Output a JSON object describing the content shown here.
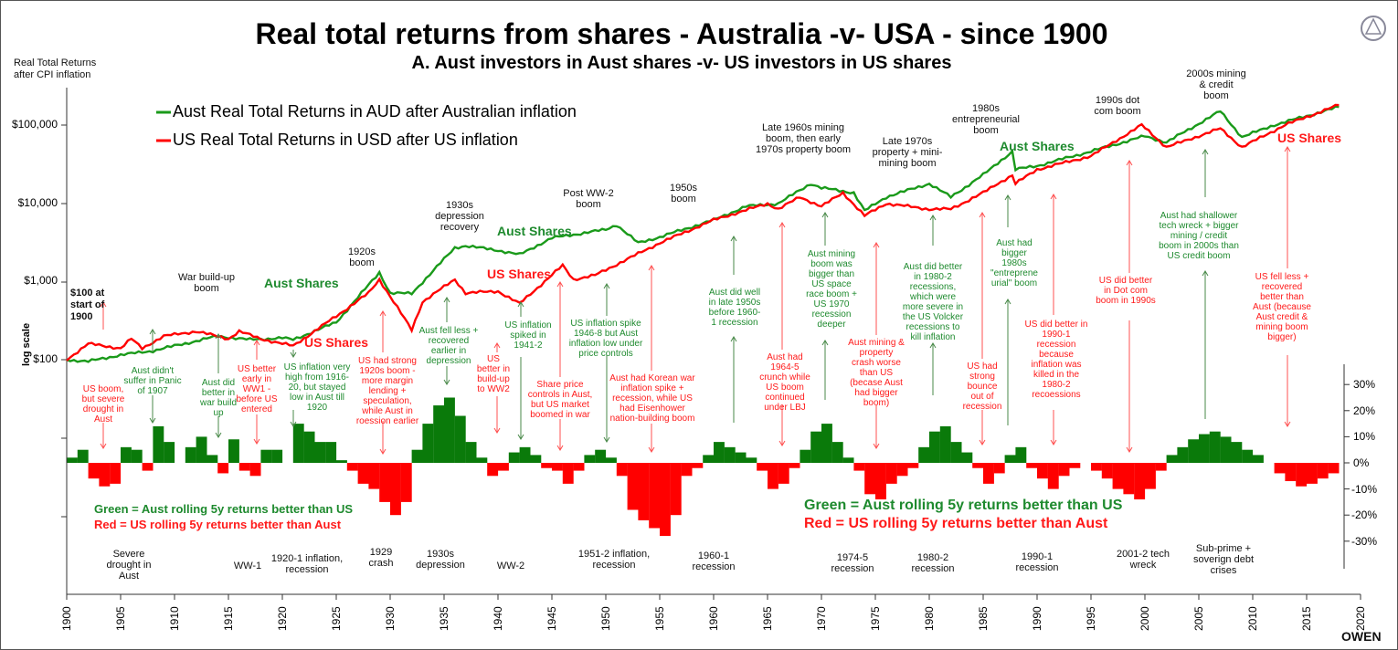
{
  "chart_data": {
    "type": "line",
    "title": "Real total returns from shares - Australia -v- USA - since 1900",
    "subtitle": "A. Aust investors in Aust shares -v- US investors in US shares",
    "ylabel": "Real Total Returns\nafter CPI inflation",
    "yscale": "log",
    "yscale_label": "log scale",
    "y_ticks": [
      "$100",
      "$1,000",
      "$10,000",
      "$100,000"
    ],
    "y_tick_values": [
      100,
      1000,
      10000,
      100000
    ],
    "x_ticks": [
      1900,
      1905,
      1910,
      1915,
      1920,
      1925,
      1930,
      1935,
      1940,
      1945,
      1950,
      1955,
      1960,
      1965,
      1970,
      1975,
      1980,
      1985,
      1990,
      1995,
      2000,
      2005,
      2010,
      2015,
      2020
    ],
    "xlim": [
      1900,
      2020
    ],
    "start_note": "$100 at\nstart of\n1900",
    "legend": [
      "Aust Real Total Returns in AUD after Australian inflation",
      "US Real Total Returns in USD after US inflation"
    ],
    "colors": {
      "aust": "#1a9a1a",
      "us": "#ff0000",
      "area_green": "#0a7a0a",
      "area_red": "#ff0000"
    },
    "series": [
      {
        "name": "Aust Real Total Returns in AUD after Australian inflation",
        "x": [
          1900,
          1902,
          1905,
          1908,
          1910,
          1914,
          1917,
          1920,
          1921,
          1925,
          1929,
          1930,
          1932,
          1936,
          1937,
          1940,
          1942,
          1945,
          1950,
          1951,
          1953,
          1955,
          1960,
          1963,
          1966,
          1969,
          1970,
          1973,
          1974,
          1976,
          1980,
          1982,
          1985,
          1987.7,
          1988,
          1990,
          1995,
          2000,
          2002,
          2007,
          2009,
          2012,
          2015,
          2018
        ],
        "values": [
          100,
          95,
          115,
          130,
          150,
          200,
          180,
          190,
          180,
          300,
          1300,
          710,
          700,
          2700,
          2850,
          2500,
          2200,
          3600,
          4600,
          5300,
          3100,
          3700,
          6100,
          9100,
          9900,
          17800,
          15700,
          13600,
          8000,
          12000,
          17800,
          12000,
          23000,
          46000,
          27000,
          30000,
          46000,
          72000,
          60000,
          150000,
          70000,
          100000,
          130000,
          170000
        ]
      },
      {
        "name": "US Real Total Returns in USD after US inflation",
        "x": [
          1900,
          1902,
          1905,
          1906,
          1907,
          1909,
          1912,
          1915,
          1916,
          1918,
          1920,
          1921,
          1925,
          1928,
          1929,
          1932,
          1933,
          1936,
          1937,
          1940,
          1942,
          1946,
          1947,
          1949,
          1955,
          1960,
          1965,
          1966,
          1968,
          1970,
          1972,
          1974,
          1976,
          1980,
          1982,
          1985,
          1987.7,
          1988,
          1990,
          1995,
          1999.7,
          2002,
          2007,
          2009,
          2013,
          2018
        ],
        "values": [
          100,
          160,
          140,
          185,
          140,
          200,
          230,
          185,
          230,
          185,
          160,
          150,
          360,
          710,
          1060,
          240,
          550,
          1060,
          710,
          750,
          520,
          1600,
          1060,
          1200,
          3100,
          6100,
          9900,
          8400,
          12000,
          9100,
          13600,
          6900,
          9900,
          8400,
          8400,
          13600,
          23000,
          17800,
          27000,
          40000,
          100000,
          52000,
          90000,
          52000,
          100000,
          180000
        ]
      }
    ],
    "difference_panel": {
      "description_labels": [
        "Green = Aust rolling 5y returns better than US",
        "Red = US rolling 5y returns better than Aust"
      ],
      "y_ticks": [
        "30%",
        "20%",
        "10%",
        "0%",
        "-10%",
        "-20%",
        "-30%"
      ],
      "ylim": [
        -30,
        30
      ],
      "x": [
        1900,
        1901,
        1902,
        1903,
        1904,
        1905,
        1906,
        1907,
        1908,
        1909,
        1910,
        1911,
        1912,
        1913,
        1914,
        1915,
        1916,
        1917,
        1918,
        1919,
        1920,
        1921,
        1922,
        1923,
        1924,
        1925,
        1926,
        1927,
        1928,
        1929,
        1930,
        1931,
        1932,
        1933,
        1934,
        1935,
        1936,
        1937,
        1938,
        1939,
        1940,
        1941,
        1942,
        1943,
        1944,
        1945,
        1946,
        1947,
        1948,
        1949,
        1950,
        1951,
        1952,
        1953,
        1954,
        1955,
        1956,
        1957,
        1958,
        1959,
        1960,
        1961,
        1962,
        1963,
        1964,
        1965,
        1966,
        1967,
        1968,
        1969,
        1970,
        1971,
        1972,
        1973,
        1974,
        1975,
        1976,
        1977,
        1978,
        1979,
        1980,
        1981,
        1982,
        1983,
        1984,
        1985,
        1986,
        1987,
        1988,
        1989,
        1990,
        1991,
        1992,
        1993,
        1994,
        1995,
        1996,
        1997,
        1998,
        1999,
        2000,
        2001,
        2002,
        2003,
        2004,
        2005,
        2006,
        2007,
        2008,
        2009,
        2010,
        2011,
        2012,
        2013,
        2014,
        2015,
        2016,
        2017
      ],
      "values": [
        2,
        5,
        -6,
        -9,
        -8,
        6,
        5,
        -3,
        14,
        8,
        0,
        6,
        10,
        3,
        -4,
        9,
        -3,
        -5,
        5,
        5,
        0,
        15,
        12,
        8,
        8,
        1,
        -3,
        -8,
        -10,
        -15,
        -20,
        -15,
        5,
        15,
        22,
        25,
        18,
        8,
        2,
        -5,
        -3,
        4,
        6,
        3,
        -2,
        -3,
        -8,
        -3,
        3,
        5,
        2,
        -5,
        -18,
        -22,
        -25,
        -28,
        -20,
        -5,
        -2,
        3,
        8,
        6,
        4,
        2,
        -3,
        -10,
        -8,
        -2,
        5,
        12,
        15,
        8,
        2,
        -3,
        -12,
        -14,
        -8,
        -5,
        -2,
        6,
        12,
        14,
        8,
        4,
        -2,
        -8,
        -4,
        3,
        6,
        -2,
        -6,
        -10,
        -5,
        -2,
        0,
        -3,
        -6,
        -10,
        -12,
        -14,
        -10,
        -3,
        3,
        6,
        9,
        11,
        12,
        10,
        8,
        5,
        3,
        0,
        -4,
        -7,
        -9,
        -8,
        -6,
        -4
      ]
    },
    "series_labels": [
      {
        "text": "Aust Shares",
        "series": "aust"
      },
      {
        "text": "Aust Shares",
        "series": "aust"
      },
      {
        "text": "Aust Shares",
        "series": "aust"
      },
      {
        "text": "US Shares",
        "series": "us"
      },
      {
        "text": "US Shares",
        "series": "us"
      },
      {
        "text": "US Shares",
        "series": "us"
      }
    ],
    "annotations": [
      {
        "text": "War build-up\nboom",
        "color": "black"
      },
      {
        "text": "1920s\nboom",
        "color": "black"
      },
      {
        "text": "1930s\ndepression\nrecovery",
        "color": "black"
      },
      {
        "text": "Post WW-2\nboom",
        "color": "black"
      },
      {
        "text": "1950s\nboom",
        "color": "black"
      },
      {
        "text": "Late 1960s mining\nboom, then early\n1970s property boom",
        "color": "black"
      },
      {
        "text": "Late 1970s\nproperty + mini-\nmining boom",
        "color": "black"
      },
      {
        "text": "1980s\nentrepreneurial\nboom",
        "color": "black"
      },
      {
        "text": "1990s dot\ncom boom",
        "color": "black"
      },
      {
        "text": "2000s mining\n& credit\nboom",
        "color": "black"
      },
      {
        "text": "Aust didn't\nsuffer in Panic\nof 1907",
        "color": "green"
      },
      {
        "text": "Aust did\nbetter in\nwar build\nup",
        "color": "green"
      },
      {
        "text": "US inflation very\nhigh from 1916-\n20, but stayed\nlow in Aust till\n1920",
        "color": "green"
      },
      {
        "text": "Aust fell less +\nrecovered\nearlier in\ndepression",
        "color": "green"
      },
      {
        "text": "US inflation\nspiked in\n1941-2",
        "color": "green"
      },
      {
        "text": "US inflation spike\n1946-8 but Aust\ninflation low under\nprice controls",
        "color": "green"
      },
      {
        "text": "Aust did well\nin late 1950s\nbefore 1960-\n1 recession",
        "color": "green"
      },
      {
        "text": "Aust mining\nboom was\nbigger than\nUS space\nrace boom +\nUS 1970\nrecession\ndeeper",
        "color": "green"
      },
      {
        "text": "Aust did better\nin 1980-2\nrecessions,\nwhich were\nmore severe in\nthe US Volcker\nrecessions to\nkill inflation",
        "color": "green"
      },
      {
        "text": "Aust had\nbigger\n1980s\n\"entreprene\nurial\" boom",
        "color": "green"
      },
      {
        "text": "Aust had shallower\ntech wreck + bigger\nmining / credit\nboom in 2000s than\nUS credit boom",
        "color": "green"
      },
      {
        "text": "US boom,\nbut severe\ndrought in\nAust",
        "color": "red"
      },
      {
        "text": "US better\nearly in\nWW1 -\nbefore US\nentered",
        "color": "red"
      },
      {
        "text": "US had strong\n1920s boom -\nmore margin\nlending +\nspeculation,\nwhile Aust in\nroession earlier",
        "color": "red"
      },
      {
        "text": "US\nbetter in\nbuild-up\nto WW2",
        "color": "red"
      },
      {
        "text": "Share price\ncontrols in Aust,\nbut US market\nboomed in war",
        "color": "red"
      },
      {
        "text": "Aust had Korean war\ninflation spike +\nrecession, while US\nhad Eisenhower\nnation-building boom",
        "color": "red"
      },
      {
        "text": "Aust had\n1964-5\ncrunch while\nUS boom\ncontinued\nunder LBJ",
        "color": "red"
      },
      {
        "text": "Aust mining &\nproperty\ncrash worse\nthan US\n(becase Aust\nhad bigger\nboom)",
        "color": "red"
      },
      {
        "text": "US had\nstrong\nbounce\nout of\nrecession",
        "color": "red"
      },
      {
        "text": "US did better in\n1990-1\nrecession\nbecause\ninflation was\nkilled in the\n1980-2\nrecoessions",
        "color": "red"
      },
      {
        "text": "US did better\nin Dot com\nboom in 1990s",
        "color": "red"
      },
      {
        "text": "US fell less +\nrecovered\nbetter than\nAust (because\nAust credit &\nmining boom\nbigger)",
        "color": "red"
      },
      {
        "text": "Severe\ndrought in\nAust",
        "color": "black"
      },
      {
        "text": "WW-1",
        "color": "black"
      },
      {
        "text": "1920-1 inflation,\nrecession",
        "color": "black"
      },
      {
        "text": "1929\ncrash",
        "color": "black"
      },
      {
        "text": "1930s\ndepression",
        "color": "black"
      },
      {
        "text": "WW-2",
        "color": "black"
      },
      {
        "text": "1951-2 inflation,\nrecession",
        "color": "black"
      },
      {
        "text": "1960-1\nrecession",
        "color": "black"
      },
      {
        "text": "1974-5\nrecession",
        "color": "black"
      },
      {
        "text": "1980-2\nrecession",
        "color": "black"
      },
      {
        "text": "1990-1\nrecession",
        "color": "black"
      },
      {
        "text": "2001-2 tech\nwreck",
        "color": "black"
      },
      {
        "text": "Sub-prime +\nsoverign debt\ncrises",
        "color": "black"
      }
    ],
    "grid": false,
    "legend_position": "top-left"
  },
  "brand": "OWEN"
}
